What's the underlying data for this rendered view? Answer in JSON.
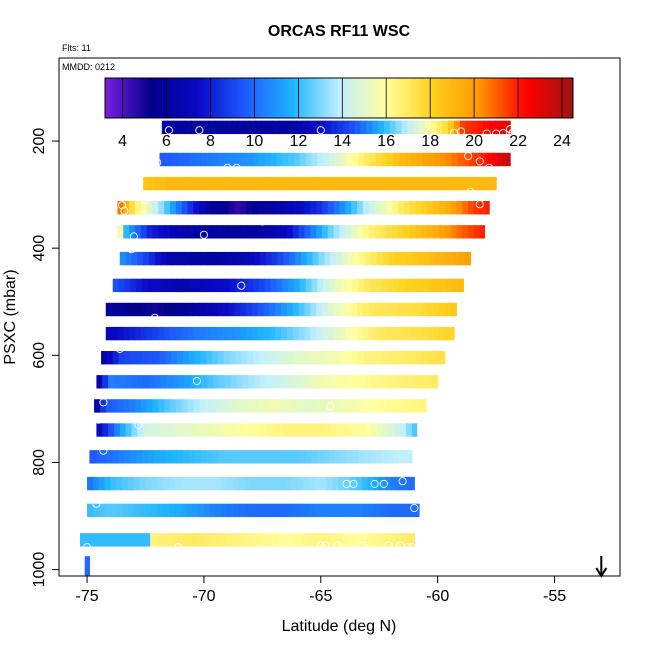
{
  "chart_data": {
    "type": "heatmap",
    "title": "ORCAS RF11 WSC",
    "flights_note": "Flts: 11",
    "date_note": "MMDD: 0212",
    "xlabel": "Latitude (deg N)",
    "ylabel": "PSXC (mbar)",
    "xlim": [
      -76.2,
      -52.2
    ],
    "ylim": [
      1012,
      45
    ],
    "x_ticks": [
      -75,
      -70,
      -65,
      -60,
      -55
    ],
    "x_tick_labels": [
      "-75",
      "-70",
      "-65",
      "-60",
      "-55"
    ],
    "y_ticks": [
      200,
      400,
      600,
      800,
      1000
    ],
    "y_tick_labels": [
      "200",
      "400",
      "600",
      "800",
      "1000"
    ],
    "colorbar": {
      "min": 3.2,
      "max": 24.5,
      "ticks": [
        4,
        6,
        8,
        10,
        12,
        14,
        16,
        18,
        20,
        22,
        24
      ],
      "tick_labels": [
        "4",
        "6",
        "8",
        "10",
        "12",
        "14",
        "16",
        "18",
        "20",
        "22",
        "24"
      ],
      "colors": [
        "#7b1fe0",
        "#00008b",
        "#0a0ac8",
        "#1e5aff",
        "#1eb4ff",
        "#bfefff",
        "#ffff9e",
        "#ffd21e",
        "#ff9600",
        "#ff0000",
        "#9b1414"
      ]
    },
    "marker_note": "arrow at -53 deg N",
    "arrow_lat": -53,
    "bands": [
      {
        "p": 175,
        "p_top": 162,
        "p_bot": 187,
        "lat_start": -71.8,
        "lat_end": -56.9,
        "stops": [
          [
            -71.8,
            6.0
          ],
          [
            -66.5,
            6.0
          ],
          [
            -65.0,
            7.5
          ],
          [
            -63.5,
            9.5
          ],
          [
            -62.0,
            12.5
          ],
          [
            -60.5,
            15.5
          ],
          [
            -59.5,
            18.0
          ],
          [
            -59.0,
            21.5
          ],
          [
            -57.5,
            22.5
          ],
          [
            -56.9,
            23.0
          ]
        ]
      },
      {
        "p": 235,
        "p_top": 222,
        "p_bot": 247,
        "lat_start": -71.9,
        "lat_end": -56.9,
        "stops": [
          [
            -71.9,
            9.5
          ],
          [
            -68.0,
            11.0
          ],
          [
            -66.0,
            12.5
          ],
          [
            -64.5,
            14.5
          ],
          [
            -63.0,
            17.0
          ],
          [
            -61.5,
            19.0
          ],
          [
            -59.5,
            20.5
          ],
          [
            -58.0,
            22.0
          ],
          [
            -57.0,
            23.5
          ]
        ]
      },
      {
        "p": 280,
        "p_top": 267,
        "p_bot": 292,
        "lat_start": -72.6,
        "lat_end": -57.5,
        "stops": [
          [
            -72.6,
            18.5
          ],
          [
            -71.5,
            19.0
          ],
          [
            -57.5,
            19.0
          ]
        ]
      },
      {
        "p": 325,
        "p_top": 312,
        "p_bot": 337,
        "lat_start": -73.7,
        "lat_end": -57.8,
        "stops": [
          [
            -73.7,
            21.5
          ],
          [
            -73.0,
            17.0
          ],
          [
            -72.0,
            14.0
          ],
          [
            -71.0,
            10.0
          ],
          [
            -70.0,
            6.5
          ],
          [
            -68.5,
            4.5
          ],
          [
            -67.5,
            6.0
          ],
          [
            -66.5,
            6.5
          ],
          [
            -65.0,
            8.5
          ],
          [
            -64.0,
            11.0
          ],
          [
            -63.0,
            14.0
          ],
          [
            -61.5,
            17.0
          ],
          [
            -59.5,
            19.5
          ],
          [
            -58.5,
            21.5
          ],
          [
            -57.8,
            22.0
          ]
        ]
      },
      {
        "p": 370,
        "p_top": 357,
        "p_bot": 382,
        "lat_start": -73.7,
        "lat_end": -58.0,
        "stops": [
          [
            -73.7,
            17.5
          ],
          [
            -73.3,
            11.5
          ],
          [
            -72.3,
            8.0
          ],
          [
            -71.0,
            6.5
          ],
          [
            -69.5,
            6.0
          ],
          [
            -68.0,
            6.0
          ],
          [
            -66.5,
            7.0
          ],
          [
            -65.5,
            10.0
          ],
          [
            -64.5,
            13.0
          ],
          [
            -63.0,
            16.5
          ],
          [
            -61.5,
            18.0
          ],
          [
            -60.0,
            19.5
          ],
          [
            -59.0,
            21.0
          ],
          [
            -58.0,
            22.0
          ]
        ]
      },
      {
        "p": 420,
        "p_top": 407,
        "p_bot": 432,
        "lat_start": -73.6,
        "lat_end": -58.6,
        "stops": [
          [
            -73.6,
            11.0
          ],
          [
            -72.5,
            9.0
          ],
          [
            -71.5,
            6.5
          ],
          [
            -69.5,
            6.0
          ],
          [
            -68.0,
            7.0
          ],
          [
            -66.5,
            9.5
          ],
          [
            -65.0,
            13.0
          ],
          [
            -63.5,
            16.0
          ],
          [
            -62.0,
            18.0
          ],
          [
            -60.0,
            19.0
          ],
          [
            -58.6,
            20.0
          ]
        ]
      },
      {
        "p": 470,
        "p_top": 457,
        "p_bot": 482,
        "lat_start": -73.9,
        "lat_end": -58.9,
        "stops": [
          [
            -73.9,
            9.5
          ],
          [
            -72.5,
            7.5
          ],
          [
            -71.0,
            6.5
          ],
          [
            -69.0,
            7.5
          ],
          [
            -67.5,
            9.0
          ],
          [
            -66.0,
            11.5
          ],
          [
            -64.5,
            15.0
          ],
          [
            -63.0,
            17.0
          ],
          [
            -61.5,
            18.0
          ],
          [
            -58.9,
            19.0
          ]
        ]
      },
      {
        "p": 515,
        "p_top": 502,
        "p_bot": 527,
        "lat_start": -74.2,
        "lat_end": -59.2,
        "stops": [
          [
            -74.2,
            6.0
          ],
          [
            -72.0,
            5.0
          ],
          [
            -70.5,
            6.0
          ],
          [
            -69.0,
            7.5
          ],
          [
            -67.5,
            9.5
          ],
          [
            -66.0,
            12.0
          ],
          [
            -64.5,
            15.0
          ],
          [
            -63.0,
            17.0
          ],
          [
            -61.0,
            17.5
          ],
          [
            -59.2,
            18.5
          ]
        ]
      },
      {
        "p": 560,
        "p_top": 547,
        "p_bot": 572,
        "lat_start": -74.2,
        "lat_end": -59.3,
        "stops": [
          [
            -74.2,
            7.0
          ],
          [
            -72.5,
            8.5
          ],
          [
            -71.5,
            9.5
          ],
          [
            -70.0,
            10.5
          ],
          [
            -68.5,
            11.0
          ],
          [
            -67.0,
            12.0
          ],
          [
            -65.5,
            13.5
          ],
          [
            -64.0,
            15.5
          ],
          [
            -62.5,
            17.0
          ],
          [
            -60.5,
            17.5
          ],
          [
            -59.3,
            18.0
          ]
        ]
      },
      {
        "p": 605,
        "p_top": 592,
        "p_bot": 617,
        "lat_start": -74.4,
        "lat_end": -59.7,
        "stops": [
          [
            -74.4,
            6.0
          ],
          [
            -73.5,
            9.0
          ],
          [
            -72.0,
            9.5
          ],
          [
            -70.5,
            11.5
          ],
          [
            -69.0,
            13.0
          ],
          [
            -67.5,
            14.0
          ],
          [
            -66.0,
            15.0
          ],
          [
            -64.5,
            15.5
          ],
          [
            -63.0,
            16.5
          ],
          [
            -61.0,
            17.0
          ],
          [
            -59.7,
            17.5
          ]
        ]
      },
      {
        "p": 650,
        "p_top": 637,
        "p_bot": 662,
        "lat_start": -74.6,
        "lat_end": -60.0,
        "stops": [
          [
            -74.6,
            5.5
          ],
          [
            -74.0,
            10.5
          ],
          [
            -72.5,
            10.0
          ],
          [
            -71.0,
            11.0
          ],
          [
            -69.5,
            12.5
          ],
          [
            -68.0,
            13.5
          ],
          [
            -66.5,
            14.5
          ],
          [
            -65.0,
            15.5
          ],
          [
            -63.5,
            16.0
          ],
          [
            -62.0,
            16.5
          ],
          [
            -60.0,
            17.0
          ]
        ]
      },
      {
        "p": 695,
        "p_top": 682,
        "p_bot": 707,
        "lat_start": -74.7,
        "lat_end": -60.5,
        "stops": [
          [
            -74.7,
            5.5
          ],
          [
            -74.2,
            9.5
          ],
          [
            -73.0,
            10.5
          ],
          [
            -71.5,
            12.5
          ],
          [
            -70.0,
            14.0
          ],
          [
            -68.5,
            15.0
          ],
          [
            -67.0,
            15.5
          ],
          [
            -65.5,
            15.0
          ],
          [
            -64.0,
            15.5
          ],
          [
            -62.5,
            16.0
          ],
          [
            -60.5,
            16.5
          ]
        ]
      },
      {
        "p": 740,
        "p_top": 727,
        "p_bot": 752,
        "lat_start": -74.6,
        "lat_end": -60.9,
        "stops": [
          [
            -74.6,
            6.5
          ],
          [
            -73.5,
            11.5
          ],
          [
            -72.5,
            14.5
          ],
          [
            -71.0,
            15.0
          ],
          [
            -69.5,
            15.5
          ],
          [
            -68.0,
            16.0
          ],
          [
            -66.5,
            16.5
          ],
          [
            -65.0,
            16.5
          ],
          [
            -63.0,
            16.0
          ],
          [
            -61.5,
            14.0
          ],
          [
            -60.9,
            12.0
          ]
        ]
      },
      {
        "p": 790,
        "p_top": 777,
        "p_bot": 802,
        "lat_start": -74.9,
        "lat_end": -61.1,
        "stops": [
          [
            -74.9,
            9.5
          ],
          [
            -73.5,
            10.5
          ],
          [
            -72.0,
            11.5
          ],
          [
            -70.5,
            12.0
          ],
          [
            -69.0,
            12.5
          ],
          [
            -67.5,
            12.5
          ],
          [
            -66.0,
            12.5
          ],
          [
            -64.5,
            13.0
          ],
          [
            -63.0,
            13.5
          ],
          [
            -61.1,
            14.0
          ]
        ]
      },
      {
        "p": 840,
        "p_top": 827,
        "p_bot": 852,
        "lat_start": -75.0,
        "lat_end": -61.0,
        "stops": [
          [
            -75.0,
            10.0
          ],
          [
            -74.0,
            12.0
          ],
          [
            -72.5,
            13.0
          ],
          [
            -71.0,
            13.5
          ],
          [
            -69.5,
            13.5
          ],
          [
            -68.0,
            13.0
          ],
          [
            -66.5,
            13.0
          ],
          [
            -65.0,
            13.5
          ],
          [
            -63.5,
            12.5
          ],
          [
            -62.0,
            10.5
          ],
          [
            -61.0,
            10.0
          ]
        ]
      },
      {
        "p": 890,
        "p_top": 877,
        "p_bot": 902,
        "lat_start": -75.0,
        "lat_end": -60.8,
        "stops": [
          [
            -75.0,
            12.0
          ],
          [
            -74.0,
            12.5
          ],
          [
            -72.5,
            12.0
          ],
          [
            -71.0,
            11.5
          ],
          [
            -69.5,
            10.5
          ],
          [
            -68.0,
            10.0
          ],
          [
            -66.5,
            10.0
          ],
          [
            -65.0,
            10.5
          ],
          [
            -63.5,
            10.5
          ],
          [
            -62.0,
            10.0
          ],
          [
            -60.8,
            10.0
          ]
        ]
      },
      {
        "p": 945,
        "p_top": 932,
        "p_bot": 957,
        "lat_start": -75.3,
        "lat_end": -61.0,
        "stops": [
          [
            -75.3,
            12.0
          ],
          [
            -72.3,
            12.0
          ],
          [
            -72.2,
            16.5
          ],
          [
            -70.5,
            17.0
          ],
          [
            -68.5,
            16.5
          ],
          [
            -66.5,
            16.0
          ],
          [
            -65.0,
            16.5
          ],
          [
            -63.5,
            16.0
          ],
          [
            -62.0,
            16.5
          ],
          [
            -61.0,
            17.0
          ]
        ]
      },
      {
        "p": 990,
        "p_top": 975,
        "p_bot": 1012,
        "lat_start": -75.1,
        "lat_end": -74.9,
        "stops": [
          [
            -75.1,
            10.0
          ],
          [
            -74.9,
            10.0
          ]
        ]
      }
    ],
    "points": [
      [
        -71.5,
        180
      ],
      [
        -70.2,
        180
      ],
      [
        -65.0,
        180
      ],
      [
        -59.3,
        185
      ],
      [
        -59.0,
        182
      ],
      [
        -57.9,
        186
      ],
      [
        -57.5,
        186
      ],
      [
        -57.2,
        185
      ],
      [
        -56.9,
        178
      ],
      [
        -56.8,
        185
      ],
      [
        -72.0,
        240
      ],
      [
        -69.0,
        250
      ],
      [
        -68.6,
        250
      ],
      [
        -58.7,
        228
      ],
      [
        -58.2,
        238
      ],
      [
        -57.8,
        250
      ],
      [
        -72.5,
        310
      ],
      [
        -58.6,
        295
      ],
      [
        -58.2,
        318
      ],
      [
        -73.5,
        320
      ],
      [
        -73.4,
        330
      ],
      [
        -67.5,
        350
      ],
      [
        -70.0,
        375
      ],
      [
        -73.0,
        378
      ],
      [
        -73.1,
        390
      ],
      [
        -73.1,
        402
      ],
      [
        -68.4,
        470
      ],
      [
        -73.6,
        490
      ],
      [
        -74.5,
        515
      ],
      [
        -72.1,
        530
      ],
      [
        -73.6,
        588
      ],
      [
        -70.3,
        648
      ],
      [
        -74.3,
        688
      ],
      [
        -74.5,
        720
      ],
      [
        -72.8,
        730
      ],
      [
        -64.6,
        695
      ],
      [
        -74.3,
        778
      ],
      [
        -63.9,
        840
      ],
      [
        -63.6,
        840
      ],
      [
        -62.7,
        840
      ],
      [
        -62.3,
        840
      ],
      [
        -61.5,
        835
      ],
      [
        -74.6,
        877
      ],
      [
        -61.0,
        885
      ],
      [
        -75.0,
        958
      ],
      [
        -71.1,
        958
      ],
      [
        -65.0,
        955
      ],
      [
        -64.8,
        955
      ],
      [
        -64.3,
        955
      ],
      [
        -63.2,
        955
      ],
      [
        -62.1,
        955
      ],
      [
        -61.6,
        955
      ],
      [
        -61.3,
        958
      ],
      [
        -61.1,
        958
      ]
    ]
  }
}
